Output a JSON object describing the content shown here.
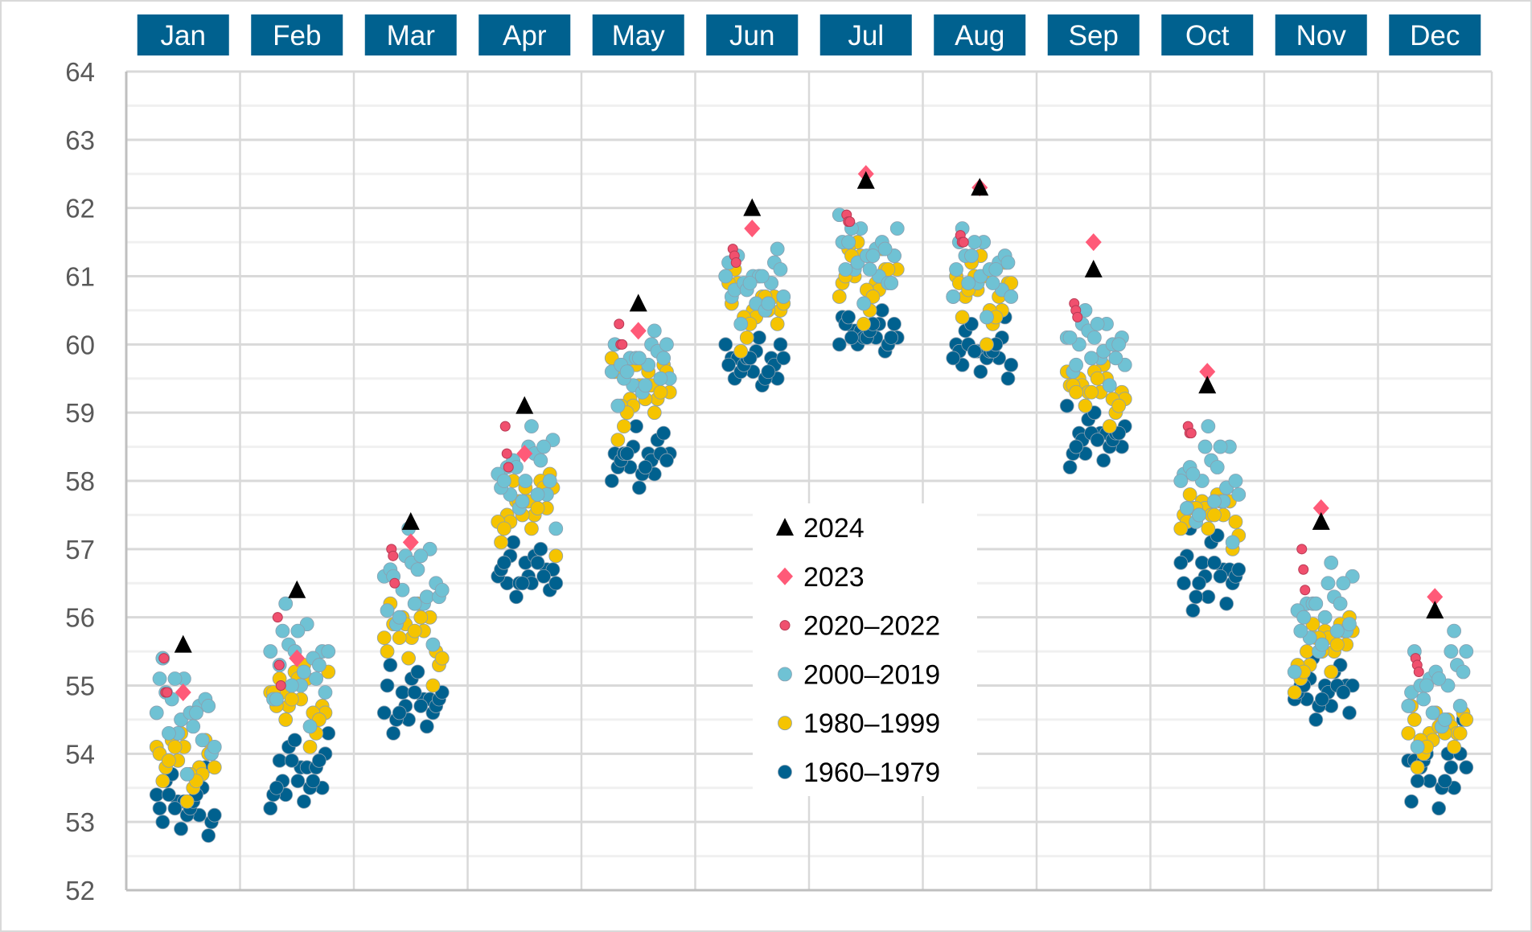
{
  "chart_data": {
    "type": "scatter",
    "title": "",
    "xlabel": "",
    "ylabel": "",
    "categories": [
      "Jan",
      "Feb",
      "Mar",
      "Apr",
      "May",
      "Jun",
      "Jul",
      "Aug",
      "Sep",
      "Oct",
      "Nov",
      "Dec"
    ],
    "ylim": [
      52,
      64
    ],
    "yticks": [
      52,
      53,
      54,
      55,
      56,
      57,
      58,
      59,
      60,
      61,
      62,
      63,
      64
    ],
    "grid": {
      "major": true,
      "minor": true,
      "vertical_month_separators": true
    },
    "legend_position": "center",
    "header_color": "#00618f",
    "series": [
      {
        "name": "2024",
        "marker": "triangle",
        "color": "#000000",
        "values": [
          [
            55.6
          ],
          [
            56.4
          ],
          [
            57.4
          ],
          [
            59.1
          ],
          [
            60.6
          ],
          [
            62.0
          ],
          [
            62.4
          ],
          [
            62.3
          ],
          [
            61.1
          ],
          [
            59.4
          ],
          [
            57.4
          ],
          [
            56.1
          ]
        ]
      },
      {
        "name": "2023",
        "marker": "diamond",
        "color": "#ff5a78",
        "values": [
          [
            54.9
          ],
          [
            55.4
          ],
          [
            57.1
          ],
          [
            58.4
          ],
          [
            60.2
          ],
          [
            61.7
          ],
          [
            62.5
          ],
          [
            62.3
          ],
          [
            61.5
          ],
          [
            59.6
          ],
          [
            57.6
          ],
          [
            56.3
          ]
        ]
      },
      {
        "name": "2020–2022",
        "marker": "small-circle",
        "color": "#f0506e",
        "values": [
          [
            55.4,
            54.9,
            54.9
          ],
          [
            56.0,
            55.3,
            55.0
          ],
          [
            57.0,
            56.9,
            56.5
          ],
          [
            58.8,
            58.4,
            58.2
          ],
          [
            60.3,
            60.0,
            60.0
          ],
          [
            61.4,
            61.3,
            61.2
          ],
          [
            61.9,
            61.8,
            61.8
          ],
          [
            61.6,
            61.5,
            61.5
          ],
          [
            60.6,
            60.5,
            60.4
          ],
          [
            58.8,
            58.7,
            58.7
          ],
          [
            57.0,
            56.7,
            56.4
          ],
          [
            55.4,
            55.3,
            55.2
          ]
        ]
      },
      {
        "name": "2000–2019",
        "marker": "circle",
        "color": "#6fc2d4",
        "values": [
          [
            54.6,
            54.3,
            54.7,
            55.1,
            54.5,
            54.2,
            55.4,
            55.1,
            54.8,
            54.9,
            53.7,
            54.7,
            54.3,
            54.6,
            54.0,
            54.8,
            54.4,
            54.1,
            55.1,
            54.6
          ],
          [
            55.3,
            55.0,
            55.5,
            55.8,
            55.2,
            54.9,
            56.2,
            55.9,
            55.5,
            55.6,
            54.4,
            55.5,
            55.0,
            55.4,
            54.8,
            55.5,
            55.1,
            54.8,
            55.8,
            55.3
          ],
          [
            56.4,
            56.2,
            56.6,
            56.9,
            56.3,
            56.1,
            57.3,
            57.0,
            56.7,
            56.8,
            55.6,
            56.6,
            56.2,
            56.5,
            55.9,
            56.7,
            56.3,
            56.0,
            56.9,
            56.4
          ],
          [
            58.0,
            57.8,
            58.2,
            58.5,
            58.0,
            57.8,
            58.8,
            58.6,
            58.3,
            58.4,
            57.3,
            58.2,
            57.8,
            58.1,
            57.6,
            58.3,
            57.9,
            57.7,
            58.5,
            58.0
          ],
          [
            59.7,
            59.5,
            59.8,
            60.0,
            59.6,
            59.4,
            60.2,
            60.0,
            59.8,
            59.9,
            59.1,
            59.8,
            59.5,
            59.7,
            59.3,
            59.8,
            59.5,
            59.4,
            60.0,
            59.6
          ],
          [
            60.9,
            60.7,
            61.0,
            61.2,
            60.8,
            60.6,
            61.4,
            61.3,
            61.0,
            61.1,
            60.3,
            61.0,
            60.7,
            60.9,
            60.5,
            61.0,
            60.8,
            60.6,
            61.2,
            60.9
          ],
          [
            61.3,
            61.1,
            61.4,
            61.7,
            61.2,
            61.0,
            61.9,
            61.7,
            61.5,
            61.5,
            60.6,
            61.4,
            61.1,
            61.3,
            60.9,
            61.5,
            61.1,
            60.9,
            61.7,
            61.3
          ],
          [
            61.1,
            60.9,
            61.2,
            61.5,
            61.0,
            60.8,
            61.7,
            61.5,
            61.3,
            61.3,
            60.4,
            61.2,
            60.9,
            61.1,
            60.7,
            61.3,
            60.9,
            60.7,
            61.5,
            61.1
          ],
          [
            60.0,
            59.8,
            60.1,
            60.3,
            59.9,
            59.7,
            60.5,
            60.3,
            60.1,
            60.2,
            59.4,
            60.1,
            59.8,
            60.0,
            59.6,
            60.1,
            59.8,
            59.7,
            60.3,
            60.0
          ],
          [
            58.0,
            57.7,
            58.1,
            58.5,
            57.9,
            57.6,
            58.8,
            58.5,
            58.2,
            58.3,
            57.1,
            58.1,
            57.7,
            58.0,
            57.4,
            58.2,
            57.8,
            57.5,
            58.5,
            58.0
          ],
          [
            56.0,
            55.8,
            56.2,
            56.5,
            55.9,
            55.7,
            56.8,
            56.6,
            56.2,
            56.3,
            55.2,
            56.2,
            55.8,
            56.1,
            55.5,
            56.2,
            55.8,
            55.6,
            56.5,
            56.0
          ],
          [
            55.0,
            54.7,
            55.1,
            55.5,
            54.9,
            54.6,
            55.8,
            55.5,
            55.2,
            55.3,
            54.1,
            55.1,
            54.7,
            55.0,
            54.4,
            55.2,
            54.8,
            54.5,
            55.5,
            55.0
          ]
        ]
      },
      {
        "name": "1980–1999",
        "marker": "circle",
        "color": "#f5c400",
        "values": [
          [
            54.1,
            53.9,
            53.8,
            54.0,
            54.3,
            53.7,
            53.6,
            54.1,
            54.2,
            53.8,
            53.3,
            54.0,
            53.9,
            53.7,
            54.0,
            54.2,
            53.5,
            53.8,
            54.1,
            53.6
          ],
          [
            55.1,
            54.8,
            54.7,
            54.9,
            55.3,
            54.6,
            54.5,
            55.1,
            55.2,
            54.7,
            54.1,
            54.9,
            54.8,
            54.6,
            54.9,
            55.2,
            54.3,
            54.7,
            55.1,
            54.5
          ],
          [
            56.0,
            55.8,
            55.7,
            55.9,
            56.3,
            55.5,
            55.4,
            56.0,
            56.2,
            55.7,
            55.0,
            55.9,
            55.8,
            55.5,
            55.9,
            56.2,
            55.3,
            55.7,
            56.0,
            55.4
          ],
          [
            57.9,
            57.6,
            57.5,
            57.7,
            58.1,
            57.4,
            57.3,
            57.9,
            58.0,
            57.5,
            56.9,
            57.7,
            57.6,
            57.4,
            57.7,
            58.0,
            57.1,
            57.5,
            57.9,
            57.3
          ],
          [
            59.6,
            59.3,
            59.2,
            59.4,
            59.8,
            59.1,
            59.0,
            59.6,
            59.7,
            59.2,
            58.6,
            59.4,
            59.3,
            59.1,
            59.4,
            59.7,
            58.8,
            59.2,
            59.6,
            59.0
          ],
          [
            60.9,
            60.6,
            60.5,
            60.7,
            61.1,
            60.4,
            60.3,
            60.9,
            61.0,
            60.5,
            59.9,
            60.7,
            60.6,
            60.4,
            60.7,
            61.0,
            60.1,
            60.5,
            60.9,
            60.3
          ],
          [
            61.3,
            61.0,
            60.9,
            61.1,
            61.5,
            60.8,
            60.7,
            61.3,
            61.4,
            60.9,
            60.3,
            61.1,
            61.0,
            60.8,
            61.1,
            61.4,
            60.5,
            60.9,
            61.3,
            60.7
          ],
          [
            61.0,
            60.8,
            60.7,
            60.9,
            61.3,
            60.5,
            60.4,
            61.0,
            61.2,
            60.7,
            60.0,
            60.9,
            60.8,
            60.5,
            60.9,
            61.2,
            60.3,
            60.7,
            61.0,
            60.4
          ],
          [
            59.5,
            59.3,
            59.3,
            59.4,
            59.7,
            59.2,
            59.1,
            59.5,
            59.6,
            59.3,
            58.8,
            59.4,
            59.3,
            59.2,
            59.4,
            59.6,
            59.0,
            59.3,
            59.5,
            59.1
          ],
          [
            57.7,
            57.5,
            57.5,
            57.6,
            57.9,
            57.4,
            57.3,
            57.7,
            57.8,
            57.5,
            57.0,
            57.6,
            57.5,
            57.4,
            57.6,
            57.8,
            57.2,
            57.5,
            57.7,
            57.3
          ],
          [
            55.8,
            55.6,
            55.5,
            55.7,
            56.0,
            55.3,
            55.2,
            55.8,
            55.9,
            55.5,
            54.9,
            55.7,
            55.6,
            55.3,
            55.7,
            55.9,
            55.1,
            55.5,
            55.8,
            55.2
          ],
          [
            54.5,
            54.3,
            54.3,
            54.4,
            54.7,
            54.2,
            54.1,
            54.5,
            54.6,
            54.3,
            53.8,
            54.4,
            54.3,
            54.2,
            54.4,
            54.6,
            54.0,
            54.3,
            54.5,
            54.1
          ]
        ]
      },
      {
        "name": "1960–1979",
        "marker": "circle",
        "color": "#00618f",
        "values": [
          [
            53.4,
            53.3,
            53.1,
            53.2,
            52.9,
            53.5,
            53.0,
            53.3,
            53.8,
            53.6,
            53.1,
            52.8,
            53.4,
            53.2,
            53.0,
            53.7,
            53.3,
            53.1,
            53.2,
            53.4
          ],
          [
            53.9,
            53.8,
            53.5,
            53.6,
            53.3,
            54.0,
            53.4,
            53.8,
            54.3,
            54.1,
            53.5,
            53.2,
            53.9,
            53.6,
            53.4,
            54.2,
            53.8,
            53.5,
            53.6,
            53.9
          ],
          [
            54.9,
            54.8,
            54.6,
            54.7,
            54.4,
            55.0,
            54.5,
            54.8,
            55.3,
            55.1,
            54.6,
            54.3,
            54.9,
            54.7,
            54.5,
            55.2,
            54.8,
            54.6,
            54.7,
            54.9
          ],
          [
            56.8,
            56.7,
            56.5,
            56.6,
            56.4,
            56.9,
            56.5,
            56.7,
            57.1,
            56.9,
            56.5,
            56.3,
            56.8,
            56.6,
            56.5,
            57.0,
            56.7,
            56.5,
            56.6,
            56.8
          ],
          [
            58.4,
            58.4,
            58.2,
            58.3,
            58.0,
            58.5,
            58.1,
            58.4,
            58.8,
            58.6,
            58.2,
            57.9,
            58.4,
            58.3,
            58.1,
            58.7,
            58.4,
            58.2,
            58.3,
            58.4
          ],
          [
            59.8,
            59.8,
            59.6,
            59.7,
            59.5,
            59.9,
            59.5,
            59.8,
            60.1,
            60.0,
            59.6,
            59.4,
            59.8,
            59.7,
            59.5,
            60.0,
            59.8,
            59.6,
            59.7,
            59.8
          ],
          [
            60.3,
            60.2,
            60.1,
            60.1,
            60.0,
            60.3,
            60.0,
            60.2,
            60.5,
            60.4,
            60.1,
            59.9,
            60.3,
            60.1,
            60.0,
            60.4,
            60.2,
            60.1,
            60.1,
            60.3
          ],
          [
            60.0,
            59.9,
            59.8,
            59.9,
            59.6,
            60.1,
            59.7,
            59.9,
            60.4,
            60.2,
            59.8,
            59.5,
            60.0,
            59.9,
            59.7,
            60.3,
            59.9,
            59.8,
            59.9,
            60.0
          ],
          [
            58.7,
            58.7,
            58.5,
            58.6,
            58.3,
            58.8,
            58.4,
            58.7,
            59.1,
            58.9,
            58.5,
            58.2,
            58.7,
            58.6,
            58.4,
            59.0,
            58.7,
            58.5,
            58.6,
            58.7
          ],
          [
            56.8,
            56.7,
            56.5,
            56.6,
            56.2,
            56.9,
            56.3,
            56.7,
            57.3,
            57.1,
            56.5,
            56.1,
            56.8,
            56.6,
            56.3,
            57.2,
            56.7,
            56.5,
            56.6,
            56.8
          ],
          [
            55.0,
            55.0,
            54.8,
            54.9,
            54.6,
            55.1,
            54.7,
            55.0,
            55.4,
            55.2,
            54.8,
            54.5,
            55.0,
            54.9,
            54.7,
            55.3,
            55.0,
            54.8,
            54.9,
            55.0
          ],
          [
            54.0,
            53.9,
            53.6,
            53.8,
            53.3,
            54.2,
            53.5,
            53.9,
            54.6,
            54.3,
            53.6,
            53.2,
            54.0,
            53.8,
            53.5,
            54.5,
            53.9,
            53.6,
            53.8,
            54.0
          ]
        ]
      }
    ]
  }
}
